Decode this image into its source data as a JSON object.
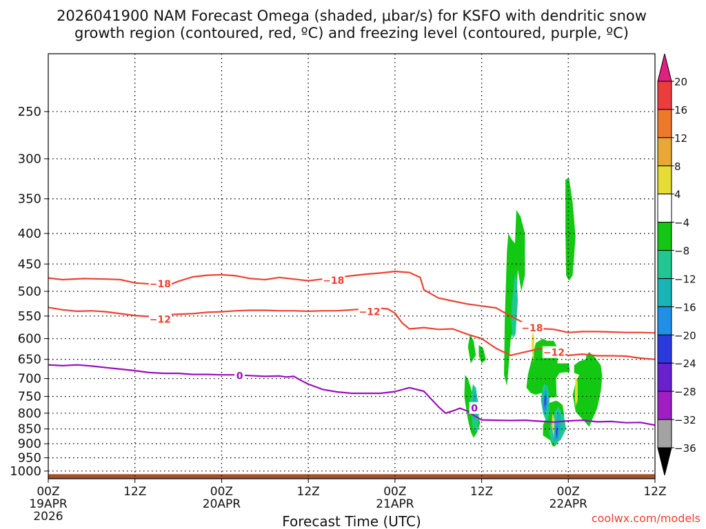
{
  "chart_data": {
    "type": "heatmap",
    "title_lines": [
      "2026041900 NAM Forecast Omega (shaded, μbar/s) for KSFO with dendritic snow",
      "growth region (contoured, red, ºC) and freezing level (contoured, purple, ºC)"
    ],
    "xlabel": "Forecast Time (UTC)",
    "x_ticks": [
      {
        "hour": 0,
        "lines": [
          "00Z",
          "19APR",
          "2026"
        ]
      },
      {
        "hour": 12,
        "lines": [
          "12Z"
        ]
      },
      {
        "hour": 24,
        "lines": [
          "00Z",
          "20APR"
        ]
      },
      {
        "hour": 36,
        "lines": [
          "12Z"
        ]
      },
      {
        "hour": 48,
        "lines": [
          "00Z",
          "21APR"
        ]
      },
      {
        "hour": 60,
        "lines": [
          "12Z"
        ]
      },
      {
        "hour": 72,
        "lines": [
          "00Z",
          "22APR"
        ]
      },
      {
        "hour": 84,
        "lines": [
          "12Z"
        ]
      }
    ],
    "x_range_hours": [
      0,
      84
    ],
    "y_axis": "pressure (hPa), log scale, inverted",
    "y_ticks": [
      250,
      300,
      350,
      400,
      450,
      500,
      550,
      600,
      650,
      700,
      750,
      800,
      850,
      900,
      950,
      1000
    ],
    "ylim": [
      200,
      1030
    ],
    "colorbar": {
      "labels": [
        "20",
        "16",
        "12",
        "8",
        "4",
        "−4",
        "−8",
        "−12",
        "−16",
        "−20",
        "−24",
        "−28",
        "−32",
        "−36"
      ],
      "bands": [
        {
          "lo": 16,
          "hi": 20,
          "color": "#ee3b3b"
        },
        {
          "lo": 12,
          "hi": 16,
          "color": "#f0782a"
        },
        {
          "lo": 8,
          "hi": 12,
          "color": "#e8a833"
        },
        {
          "lo": 4,
          "hi": 8,
          "color": "#e6dc32"
        },
        {
          "lo": -4,
          "hi": 4,
          "color": "#ffffff"
        },
        {
          "lo": -8,
          "hi": -4,
          "color": "#12c812"
        },
        {
          "lo": -12,
          "hi": -8,
          "color": "#1fc891"
        },
        {
          "lo": -16,
          "hi": -12,
          "color": "#17b5b5"
        },
        {
          "lo": -20,
          "hi": -16,
          "color": "#1f90e8"
        },
        {
          "lo": -24,
          "hi": -20,
          "color": "#2b3ae0"
        },
        {
          "lo": -28,
          "hi": -24,
          "color": "#6a1fd0"
        },
        {
          "lo": -32,
          "hi": -28,
          "color": "#a01ec6"
        },
        {
          "lo": -36,
          "hi": -32,
          "color": "#a3a3a3"
        }
      ],
      "top_arrow_color": "#e0207f",
      "bottom_arrow_color": "#000000"
    },
    "contours": [
      {
        "name": "-18 °C isotherm",
        "label": "−18",
        "color": "#ee4030",
        "points": [
          [
            0,
            475
          ],
          [
            2,
            478
          ],
          [
            5,
            476
          ],
          [
            8,
            477
          ],
          [
            10,
            478
          ],
          [
            12,
            484
          ],
          [
            14,
            486
          ],
          [
            16,
            492
          ],
          [
            18,
            481
          ],
          [
            20,
            473
          ],
          [
            22,
            470
          ],
          [
            24,
            469
          ],
          [
            26,
            471
          ],
          [
            28,
            476
          ],
          [
            30,
            478
          ],
          [
            32,
            474
          ],
          [
            34,
            477
          ],
          [
            36,
            480
          ],
          [
            38,
            477
          ],
          [
            40,
            474
          ],
          [
            42,
            471
          ],
          [
            44,
            468
          ],
          [
            46,
            466
          ],
          [
            48,
            463
          ],
          [
            50,
            465
          ],
          [
            51.5,
            474
          ],
          [
            52,
            497
          ],
          [
            54,
            513
          ],
          [
            56,
            519
          ],
          [
            58,
            525
          ],
          [
            60,
            529
          ],
          [
            62,
            533
          ],
          [
            64,
            550
          ],
          [
            66,
            566
          ],
          [
            68,
            577
          ],
          [
            70,
            579
          ],
          [
            72,
            586
          ],
          [
            74,
            584
          ],
          [
            76,
            584
          ],
          [
            78,
            585
          ],
          [
            80,
            586
          ],
          [
            82,
            586
          ],
          [
            84,
            587
          ]
        ],
        "labels": [
          [
            15.5,
            486
          ],
          [
            39.5,
            479
          ],
          [
            67,
            576
          ]
        ]
      },
      {
        "name": "-12 °C isotherm",
        "label": "−12",
        "color": "#ee4030",
        "points": [
          [
            0,
            532
          ],
          [
            2,
            537
          ],
          [
            4,
            540
          ],
          [
            6,
            539
          ],
          [
            8,
            541
          ],
          [
            10,
            545
          ],
          [
            12,
            549
          ],
          [
            14,
            551
          ],
          [
            16,
            548
          ],
          [
            18,
            546
          ],
          [
            20,
            545
          ],
          [
            22,
            542
          ],
          [
            24,
            541
          ],
          [
            26,
            539
          ],
          [
            28,
            538
          ],
          [
            30,
            538
          ],
          [
            32,
            539
          ],
          [
            34,
            539
          ],
          [
            36,
            540
          ],
          [
            38,
            539
          ],
          [
            40,
            539
          ],
          [
            42,
            537
          ],
          [
            44,
            535
          ],
          [
            46,
            534
          ],
          [
            47,
            535
          ],
          [
            48,
            544
          ],
          [
            49,
            565
          ],
          [
            50,
            578
          ],
          [
            52,
            575
          ],
          [
            54,
            579
          ],
          [
            56,
            578
          ],
          [
            58,
            590
          ],
          [
            60,
            600
          ],
          [
            62,
            623
          ],
          [
            64,
            640
          ],
          [
            66,
            632
          ],
          [
            68,
            624
          ],
          [
            70,
            630
          ],
          [
            72,
            640
          ],
          [
            74,
            637
          ],
          [
            76,
            641
          ],
          [
            78,
            641
          ],
          [
            80,
            642
          ],
          [
            82,
            647
          ],
          [
            84,
            650
          ]
        ],
        "labels": [
          [
            15.5,
            557
          ],
          [
            44.5,
            541
          ],
          [
            70,
            633
          ]
        ]
      },
      {
        "name": "0 °C freezing level",
        "label": "0",
        "color": "#9a0bc0",
        "points": [
          [
            0,
            664
          ],
          [
            2,
            666
          ],
          [
            4,
            664
          ],
          [
            6,
            667
          ],
          [
            8,
            671
          ],
          [
            10,
            675
          ],
          [
            12,
            679
          ],
          [
            14,
            684
          ],
          [
            16,
            686
          ],
          [
            18,
            686
          ],
          [
            20,
            689
          ],
          [
            22,
            689
          ],
          [
            24,
            690
          ],
          [
            26,
            690
          ],
          [
            28,
            692
          ],
          [
            30,
            694
          ],
          [
            32,
            693
          ],
          [
            33,
            696
          ],
          [
            34,
            694
          ],
          [
            35,
            705
          ],
          [
            36,
            715
          ],
          [
            38,
            730
          ],
          [
            40,
            737
          ],
          [
            42,
            741
          ],
          [
            44,
            741
          ],
          [
            46,
            741
          ],
          [
            48,
            736
          ],
          [
            50,
            725
          ],
          [
            52,
            735
          ],
          [
            54,
            780
          ],
          [
            55,
            800
          ],
          [
            56,
            793
          ],
          [
            57,
            785
          ],
          [
            58,
            793
          ],
          [
            59,
            808
          ],
          [
            60,
            821
          ],
          [
            62,
            822
          ],
          [
            64,
            823
          ],
          [
            66,
            822
          ],
          [
            68,
            825
          ],
          [
            70,
            828
          ],
          [
            72,
            824
          ],
          [
            74,
            822
          ],
          [
            76,
            827
          ],
          [
            78,
            826
          ],
          [
            80,
            830
          ],
          [
            82,
            829
          ],
          [
            84,
            838
          ]
        ],
        "labels": [
          [
            26.5,
            692
          ],
          [
            59,
            785
          ]
        ]
      }
    ],
    "omega_regions": [
      {
        "value": -6,
        "hours": [
          26.9,
          27.7,
          28.5,
          28.7,
          28.5,
          28.0,
          27.3,
          26.9,
          26.0,
          25.0,
          24.6,
          25.0,
          25.5,
          24.8,
          24.8,
          25.5,
          26.4,
          26.5
        ],
        "pressures": [
          632,
          645,
          665,
          695,
          735,
          785,
          820,
          843,
          820,
          795,
          745,
          712,
          690,
          685,
          665,
          655,
          650,
          640
        ]
      },
      {
        "value": -6,
        "hours": [
          22.6,
          23.2,
          23.4,
          23.4,
          22.5,
          22.1,
          21.8,
          21.5,
          20.5,
          20.5,
          21.0,
          21.0,
          21.2,
          21.5,
          22.3,
          22.6
        ],
        "pressures": [
          765,
          775,
          800,
          855,
          898,
          910,
          908,
          888,
          872,
          838,
          810,
          790,
          772,
          768,
          762,
          765
        ]
      },
      {
        "value": -6,
        "hours": [
          20.5,
          21.0,
          22.0,
          22.5,
          22.5,
          24.1,
          24.2,
          22.8,
          22.3,
          22.4,
          21.0,
          20.2,
          19.5,
          18.8,
          18.2,
          18.4,
          18.8,
          19.5
        ],
        "pressures": [
          600,
          605,
          605,
          622,
          660,
          660,
          682,
          685,
          700,
          752,
          754,
          740,
          745,
          740,
          725,
          690,
          660,
          610
        ]
      },
      {
        "value": -6,
        "hours": [
          23.7,
          24.1,
          24.6,
          25.0,
          24.6,
          24.1,
          23.6,
          23.6
        ],
        "pressures": [
          470,
          480,
          470,
          405,
          355,
          323,
          325,
          398
        ]
      },
      {
        "value": -6,
        "hours": [
          9.7,
          10.1,
          10.5,
          10.9,
          11.4,
          11.8,
          11.4,
          10.9,
          10.5,
          10.1,
          9.6
        ],
        "pressures": [
          690,
          700,
          725,
          770,
          800,
          830,
          860,
          880,
          860,
          820,
          750
        ]
      },
      {
        "value": -6,
        "hours": [
          15.7,
          16.2,
          16.8,
          17.0,
          16.7,
          16.0,
          15.7,
          15.5,
          15.1,
          15.2,
          15.5
        ],
        "pressures": [
          400,
          410,
          418,
          460,
          560,
          605,
          680,
          720,
          690,
          560,
          430
        ]
      },
      {
        "value": -6,
        "hours": [
          16.8,
          17.4,
          18.0,
          18.0,
          17.5,
          17.0,
          16.6
        ],
        "pressures": [
          365,
          375,
          400,
          470,
          500,
          460,
          420
        ]
      },
      {
        "value": -6,
        "hours": [
          10.4,
          10.9,
          11.2,
          10.5,
          10.1
        ],
        "pressures": [
          590,
          605,
          640,
          660,
          620
        ]
      },
      {
        "value": -6,
        "hours": [
          11.6,
          12.2,
          12.6,
          12.0,
          11.6
        ],
        "pressures": [
          615,
          622,
          650,
          660,
          640
        ]
      },
      {
        "value": -10,
        "hours": [
          22.6,
          23.4,
          23.7,
          23.0,
          22.1,
          21.6,
          21.3,
          22.0
        ],
        "pressures": [
          780,
          810,
          850,
          885,
          905,
          890,
          855,
          800
        ]
      },
      {
        "value": -10,
        "hours": [
          20.7,
          21.1,
          21.4,
          21.4,
          21.0,
          20.5,
          20.2,
          20.5
        ],
        "pressures": [
          715,
          720,
          750,
          800,
          830,
          800,
          760,
          720
        ]
      },
      {
        "value": -10,
        "hours": [
          10.8,
          11.2,
          11.7,
          11.4,
          10.8,
          10.4
        ],
        "pressures": [
          715,
          725,
          790,
          860,
          850,
          760
        ]
      },
      {
        "value": -10,
        "hours": [
          16.6,
          16.9,
          17.0,
          16.7,
          16.3,
          16.1,
          16.2
        ],
        "pressures": [
          465,
          480,
          520,
          590,
          600,
          560,
          520
        ]
      },
      {
        "value": -14,
        "hours": [
          22.6,
          22.9,
          23.0,
          22.5,
          21.9,
          21.8,
          22.2
        ],
        "pressures": [
          795,
          810,
          850,
          890,
          895,
          860,
          820
        ]
      },
      {
        "value": -14,
        "hours": [
          20.8,
          21.1,
          21.2,
          20.8,
          20.4,
          20.5
        ],
        "pressures": [
          722,
          730,
          770,
          805,
          775,
          740
        ]
      },
      {
        "value": -14,
        "hours": [
          10.9,
          11.2,
          11.3,
          11.0,
          10.7,
          10.8
        ],
        "pressures": [
          725,
          750,
          780,
          820,
          800,
          760
        ]
      },
      {
        "value": -18,
        "hours": [
          22.5,
          22.6,
          22.6,
          22.2,
          22.2
        ],
        "pressures": [
          820,
          850,
          880,
          885,
          850
        ]
      },
      {
        "value": -18,
        "hours": [
          20.9,
          21.0,
          21.0,
          20.6,
          20.6
        ],
        "pressures": [
          735,
          750,
          790,
          790,
          760
        ]
      },
      {
        "value": -22,
        "hours": [
          22.4,
          22.5,
          22.4,
          22.3
        ],
        "pressures": [
          840,
          860,
          880,
          860
        ]
      },
      {
        "value": -22,
        "hours": [
          20.9,
          20.9,
          20.7,
          20.7
        ],
        "pressures": [
          745,
          770,
          780,
          755
        ]
      },
      {
        "value": -26,
        "hours": [
          20.85,
          20.85,
          20.75,
          20.75
        ],
        "pressures": [
          755,
          775,
          778,
          760
        ]
      },
      {
        "value": 6,
        "hours": [
          19.0,
          19.3,
          19.2,
          18.9
        ],
        "pressures": [
          575,
          600,
          660,
          620
        ]
      },
      {
        "value": 6,
        "hours": [
          25.0,
          25.3,
          25.3,
          25.0,
          24.9
        ],
        "pressures": [
          690,
          710,
          760,
          780,
          750
        ]
      },
      {
        "value": 6,
        "hours": [
          21.8,
          22.1,
          22.0,
          21.7
        ],
        "pressures": [
          800,
          820,
          880,
          840
        ]
      }
    ],
    "omega_hour_offset": 48,
    "ground": {
      "color": "#a0522d",
      "top_pressure": 1012
    },
    "watermark": "coolwx.com/models"
  }
}
